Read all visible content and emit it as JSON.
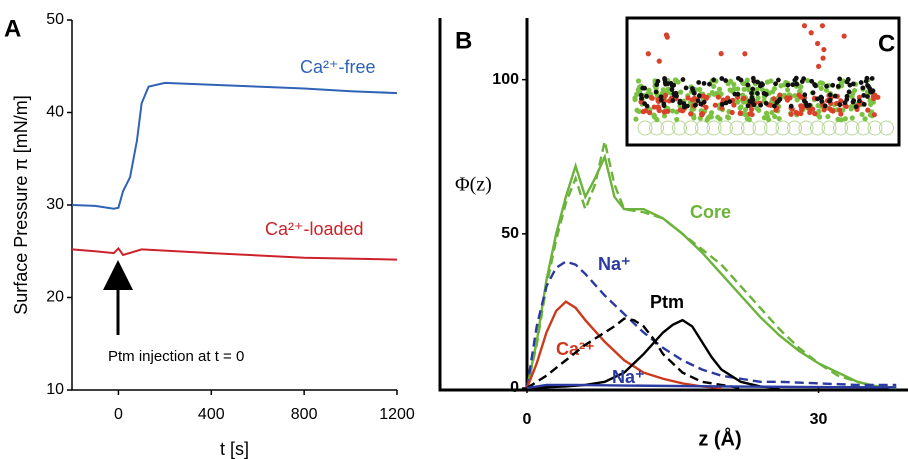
{
  "chart_data": [
    {
      "type": "line",
      "panel": "A",
      "ylabel": "Surface Pressure π [mN/m]",
      "xlabel": "t [s]",
      "annotation": "Ptm injection at t = 0",
      "xlim": [
        -200,
        1200
      ],
      "xticks": [
        0,
        400,
        800,
        1200
      ],
      "ylim": [
        10,
        50
      ],
      "yticks": [
        10,
        20,
        30,
        40,
        50
      ],
      "series": [
        {
          "name": "Ca²⁺-free",
          "color": "#2f63b6",
          "x": [
            -200,
            -100,
            -20,
            0,
            20,
            50,
            80,
            100,
            130,
            200,
            400,
            600,
            800,
            1000,
            1200
          ],
          "values": [
            30,
            29.9,
            29.6,
            29.7,
            31.5,
            33,
            37,
            41,
            42.8,
            43.2,
            43,
            42.8,
            42.6,
            42.3,
            42.1
          ]
        },
        {
          "name": "Ca²⁺-loaded",
          "color": "#cc2229",
          "x": [
            -200,
            -100,
            -20,
            0,
            20,
            100,
            400,
            800,
            1200
          ],
          "values": [
            25.2,
            25,
            24.8,
            25.3,
            24.6,
            25.2,
            24.8,
            24.3,
            24.1
          ]
        }
      ]
    },
    {
      "type": "line",
      "panel": "B",
      "inset_panel": "C",
      "ylabel": "Φ(z)",
      "xlabel": "z  (Å)",
      "xlim": [
        0,
        39
      ],
      "xticks": [
        0,
        30
      ],
      "ylim": [
        0,
        120
      ],
      "yticks": [
        0,
        50,
        100
      ],
      "series": [
        {
          "name": "Core",
          "color": "#6bb33a",
          "dash": false,
          "x": [
            0,
            1,
            2,
            3,
            4,
            5,
            6,
            7,
            8,
            9,
            10,
            11,
            12,
            14,
            16,
            18,
            20,
            22,
            24,
            26,
            28,
            30,
            32,
            34,
            36,
            38
          ],
          "values": [
            0,
            15,
            35,
            50,
            62,
            72,
            62,
            68,
            75,
            62,
            58,
            58,
            58,
            55,
            50,
            44,
            37,
            30,
            23,
            17,
            12,
            8,
            5,
            2,
            0.5,
            0
          ]
        },
        {
          "color": "#6bb33a",
          "dash": true,
          "x": [
            0,
            1,
            2,
            3,
            4,
            5,
            6,
            7,
            8,
            9,
            10,
            12,
            14,
            16,
            18,
            20,
            22,
            24,
            26,
            28,
            30,
            32,
            34,
            36,
            38
          ],
          "values": [
            0,
            14,
            33,
            48,
            60,
            68,
            58,
            66,
            80,
            66,
            58,
            57,
            55,
            50,
            45,
            40,
            33,
            26,
            19,
            13,
            8,
            4,
            2,
            0.5,
            0
          ]
        },
        {
          "name": "Na⁺",
          "color": "#2a3aa0",
          "dash": true,
          "x": [
            0,
            1,
            2,
            3,
            4,
            5,
            6,
            8,
            10,
            12,
            14,
            16,
            18,
            20,
            22,
            24,
            26,
            30,
            34,
            38
          ],
          "values": [
            0,
            20,
            33,
            39,
            41,
            40,
            37,
            30,
            24,
            18,
            13,
            9,
            6,
            4,
            3,
            2,
            2,
            1.5,
            1,
            1
          ]
        },
        {
          "name": "Ca²⁺",
          "color": "#cc3a1e",
          "dash": false,
          "x": [
            0,
            1,
            2,
            3,
            4,
            5,
            6,
            8,
            10,
            12,
            14,
            16,
            18,
            20
          ],
          "values": [
            0,
            8,
            18,
            25,
            28,
            26,
            22,
            15,
            9,
            5,
            3,
            1.5,
            0.5,
            0
          ]
        },
        {
          "name": "Ptm",
          "color": "#000000",
          "dash": false,
          "x": [
            0,
            4,
            6,
            8,
            10,
            12,
            14,
            15,
            16,
            17,
            18,
            19,
            20,
            22,
            24,
            26
          ],
          "values": [
            0,
            0.5,
            1,
            2,
            5,
            11,
            18,
            20.5,
            22,
            20,
            15,
            10,
            6,
            2,
            0.5,
            0
          ]
        },
        {
          "color": "#000000",
          "dash": true,
          "x": [
            0,
            2,
            4,
            6,
            8,
            9,
            10,
            11,
            12,
            13,
            14,
            16,
            18,
            20,
            22
          ],
          "values": [
            0,
            4,
            9,
            14,
            18,
            20,
            22.5,
            22,
            20,
            16,
            11,
            5,
            2,
            1,
            0
          ]
        },
        {
          "name": "Na⁺",
          "color": "#2a3aa0",
          "dash": false,
          "x": [
            0,
            2,
            5,
            10,
            20,
            30,
            38
          ],
          "values": [
            0,
            1,
            1,
            0.8,
            0.5,
            0.3,
            0.2
          ]
        }
      ]
    }
  ]
}
